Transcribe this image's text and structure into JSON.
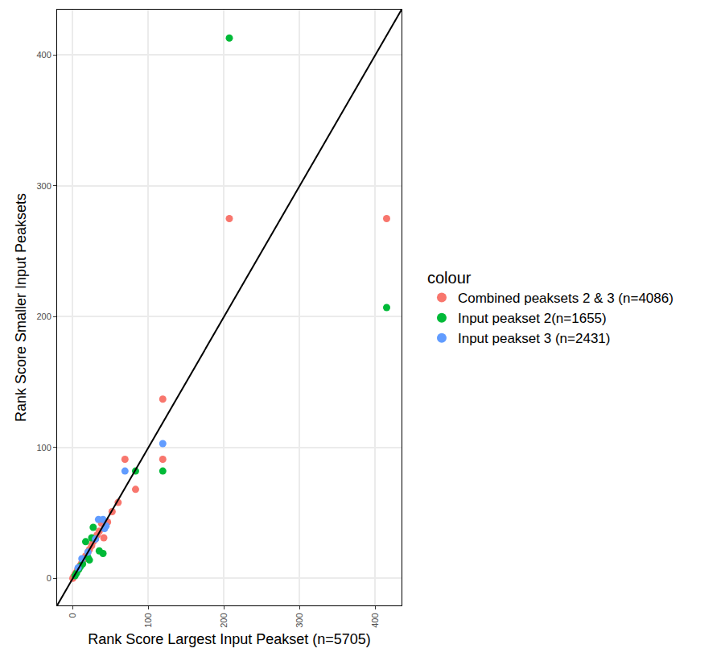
{
  "chart_data": {
    "type": "scatter",
    "xlabel": "Rank Score Largest Input Peakset (n=5705)",
    "ylabel": "Rank Score Smaller Input Peaksets",
    "legend_title": "colour",
    "legend": "right",
    "grid": true,
    "xlim": [
      -20.7,
      434.7
    ],
    "ylim": [
      -20.7,
      434.7
    ],
    "xticks": [
      0,
      100,
      200,
      300,
      400
    ],
    "yticks": [
      0,
      100,
      200,
      300,
      400
    ],
    "series": [
      {
        "name": "Combined peaksets 2 & 3 (n=4086)",
        "color": "#F8766D",
        "marker": "circle",
        "x": [
          415,
          207,
          119,
          119,
          69,
          83,
          60,
          52,
          46,
          41,
          38,
          35,
          32,
          30,
          27,
          25,
          22,
          20,
          17,
          15,
          12,
          10,
          8,
          6,
          4,
          3,
          2,
          1,
          0
        ],
        "values": [
          275,
          275,
          137,
          91,
          91,
          68,
          58,
          51,
          43,
          31,
          42,
          36,
          33,
          30,
          28,
          25,
          22,
          20,
          17,
          15,
          12,
          10,
          8,
          6,
          4,
          3,
          2,
          1,
          0
        ]
      },
      {
        "name": "Input peakset 2(n=1655)",
        "color": "#00BA38",
        "marker": "circle",
        "x": [
          207,
          415,
          119,
          83,
          40,
          27,
          17,
          25,
          35,
          22,
          20,
          13,
          10,
          8,
          5,
          3
        ],
        "values": [
          413,
          207,
          82,
          82,
          19,
          39,
          28,
          31,
          21,
          14,
          16,
          11,
          9,
          7,
          4,
          2
        ]
      },
      {
        "name": "Input peakset 3 (n=2431)",
        "color": "#619CFF",
        "marker": "circle",
        "x": [
          119,
          69,
          34,
          40,
          44,
          42,
          30,
          20,
          12,
          7
        ],
        "values": [
          103,
          82,
          45,
          45,
          40,
          38,
          30,
          20,
          15,
          8
        ]
      },
      {
        "type": "line",
        "color": "#000000",
        "line_style": "solid",
        "x": [
          -20.7,
          434.7
        ],
        "values": [
          -20.7,
          434.7
        ]
      }
    ]
  }
}
